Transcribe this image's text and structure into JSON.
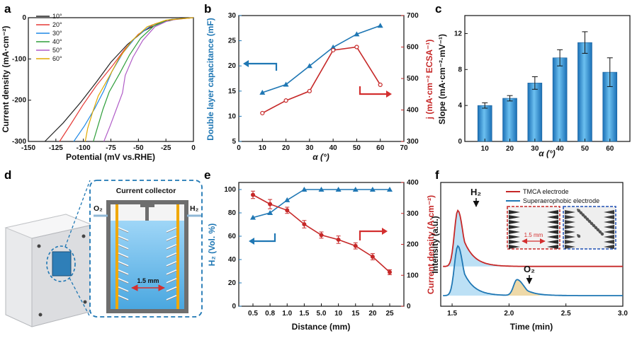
{
  "chart_data": [
    {
      "panel": "a",
      "type": "line",
      "xlabel": "Potential (mV vs.RHE)",
      "ylabel": "Current density (mA·cm⁻²)",
      "xlim": [
        -150,
        0
      ],
      "ylim": [
        -300,
        0
      ],
      "xticks": [
        "-150",
        "-125",
        "-100",
        "-75",
        "-50",
        "-25",
        "0"
      ],
      "yticks": [
        "0",
        "-100",
        "-200",
        "-300"
      ],
      "legend": [
        "10°",
        "20°",
        "30°",
        "40°",
        "50°",
        "60°"
      ],
      "series": [
        {
          "name": "10°",
          "color": "#222222",
          "x": [
            -135,
            -120,
            -105,
            -90,
            -75,
            -60,
            -45,
            -30,
            -15,
            0
          ],
          "y": [
            -300,
            -255,
            -205,
            -155,
            -108,
            -65,
            -32,
            -12,
            -3,
            0
          ]
        },
        {
          "name": "20°",
          "color": "#e53935",
          "x": [
            -122,
            -110,
            -98,
            -86,
            -74,
            -62,
            -50,
            -35,
            -20,
            0
          ],
          "y": [
            -300,
            -258,
            -212,
            -165,
            -118,
            -75,
            -40,
            -15,
            -4,
            0
          ]
        },
        {
          "name": "30°",
          "color": "#1e88e5",
          "x": [
            -108,
            -100,
            -92,
            -84,
            -74,
            -64,
            -52,
            -38,
            -22,
            0
          ],
          "y": [
            -300,
            -262,
            -220,
            -178,
            -130,
            -85,
            -46,
            -18,
            -5,
            0
          ]
        },
        {
          "name": "40°",
          "color": "#2e9e3a",
          "x": [
            -92,
            -86,
            -80,
            -74,
            -67,
            -58,
            -48,
            -36,
            -22,
            0
          ],
          "y": [
            -300,
            -262,
            -222,
            -180,
            -135,
            -90,
            -50,
            -20,
            -5,
            0
          ]
        },
        {
          "name": "50°",
          "color": "#b05cc7",
          "x": [
            -80,
            -76,
            -72,
            -67,
            -62,
            -55,
            -46,
            -35,
            -22,
            0
          ],
          "y": [
            -300,
            -262,
            -222,
            -182,
            -140,
            -96,
            -55,
            -22,
            -6,
            0
          ]
        },
        {
          "name": "60°",
          "color": "#e0a800",
          "x": [
            -100,
            -96,
            -90,
            -84,
            -77,
            -68,
            -56,
            -42,
            -25,
            0
          ],
          "y": [
            -300,
            -268,
            -230,
            -190,
            -145,
            -100,
            -56,
            -22,
            -6,
            0
          ]
        }
      ]
    },
    {
      "panel": "b",
      "type": "line",
      "xlabel": "α (°)",
      "ylabel_left": "Double layer capacitance (mF)",
      "ylabel_right": "j (mA·cm⁻² ECSA⁻¹)",
      "xlim": [
        0,
        70
      ],
      "ylim_left": [
        5,
        30
      ],
      "ylim_right": [
        300,
        700
      ],
      "xticks": [
        "0",
        "10",
        "20",
        "30",
        "40",
        "50",
        "60",
        "70"
      ],
      "yticks_left": [
        "5",
        "10",
        "15",
        "20",
        "25",
        "30"
      ],
      "yticks_right": [
        "300",
        "400",
        "500",
        "600",
        "700"
      ],
      "x": [
        10,
        20,
        30,
        40,
        50,
        60
      ],
      "series": [
        {
          "name": "Double layer capacitance",
          "axis": "left",
          "color": "#1f77b4",
          "values": [
            14.7,
            16.3,
            20.0,
            23.7,
            26.3,
            28.0
          ]
        },
        {
          "name": "j",
          "axis": "right",
          "color": "#c62828",
          "values": [
            390,
            430,
            460,
            590,
            600,
            480
          ]
        }
      ]
    },
    {
      "panel": "c",
      "type": "bar",
      "xlabel": "α (°)",
      "ylabel": "Slope (mA·cm⁻²·mV⁻¹)",
      "ylim": [
        0,
        14
      ],
      "yticks": [
        "0",
        "4",
        "8",
        "12"
      ],
      "categories": [
        "10",
        "20",
        "30",
        "40",
        "50",
        "60"
      ],
      "values": [
        4.0,
        4.8,
        6.5,
        9.3,
        11.0,
        7.7
      ],
      "errors": [
        0.3,
        0.3,
        0.7,
        0.9,
        1.2,
        1.6
      ]
    },
    {
      "panel": "e",
      "type": "line",
      "xlabel": "Distance (mm)",
      "ylabel_left": "H₂ (Vol. %)",
      "ylabel_right": "Current density (A·cm⁻²)",
      "ylim_left": [
        0,
        100
      ],
      "ylim_right": [
        0,
        400
      ],
      "yticks_left": [
        "0",
        "20",
        "40",
        "60",
        "80",
        "100"
      ],
      "yticks_right": [
        "0",
        "100",
        "200",
        "300",
        "400"
      ],
      "categories": [
        "0.5",
        "0.8",
        "1.0",
        "1.5",
        "5.0",
        "10",
        "15",
        "20",
        "25"
      ],
      "series": [
        {
          "name": "H₂",
          "axis": "left",
          "color": "#1f77b4",
          "values": [
            76,
            80,
            91,
            100,
            100,
            100,
            100,
            100,
            100
          ]
        },
        {
          "name": "Current density",
          "axis": "right",
          "color": "#c62828",
          "values": [
            360,
            330,
            310,
            265,
            230,
            215,
            195,
            160,
            110
          ],
          "errors": [
            12,
            15,
            10,
            12,
            10,
            12,
            10,
            10,
            8
          ]
        }
      ]
    },
    {
      "panel": "f",
      "type": "line",
      "xlabel": "Time (min)",
      "ylabel": "Intensity (a.u.)",
      "xlim": [
        1.4,
        3.0
      ],
      "xticks": [
        "1.5",
        "2.0",
        "2.5",
        "3.0"
      ],
      "legend": [
        "TMCA electrode",
        "Superaerophobic electrode"
      ],
      "annotations": {
        "h2": "H₂",
        "o2": "O₂",
        "gap": "1.5 mm"
      },
      "series": [
        {
          "name": "TMCA electrode",
          "color": "#c62828",
          "peaks": [
            {
              "t": 1.55,
              "h": 0.88
            }
          ],
          "offset": 0.5
        },
        {
          "name": "Superaerophobic electrode",
          "color": "#1f77b4",
          "peaks": [
            {
              "t": 1.55,
              "h": 0.78
            },
            {
              "t": 2.07,
              "h": 0.25
            }
          ],
          "offset": 0.0
        }
      ]
    }
  ],
  "labels": {
    "panels": [
      "a",
      "b",
      "c",
      "d",
      "e",
      "f"
    ],
    "current_collector": "Current collector",
    "o2": "O₂",
    "h2": "H₂",
    "gap": "1.5 mm"
  }
}
